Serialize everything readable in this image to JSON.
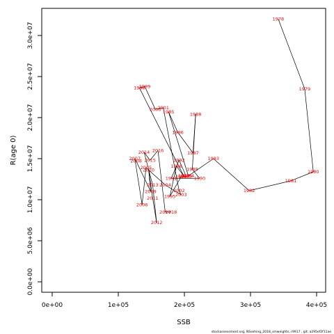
{
  "chart_data": {
    "type": "line",
    "xlabel": "SSB",
    "ylabel": "R(age 0)",
    "xlim": [
      0,
      400000
    ],
    "ylim": [
      0,
      32000000
    ],
    "x_ticks": [
      0,
      100000,
      200000,
      300000,
      400000
    ],
    "x_tick_labels": [
      "0e+00",
      "1e+05",
      "2e+05",
      "3e+05",
      "4e+05"
    ],
    "y_ticks": [
      0,
      5000000,
      10000000,
      15000000,
      20000000,
      25000000,
      30000000
    ],
    "y_tick_labels": [
      "0.0e+00",
      "5.0e+06",
      "1.0e+07",
      "1.5e+07",
      "2.0e+07",
      "2.5e+07",
      "3.0e+07"
    ],
    "grid": false,
    "series": [
      {
        "color": "#ff0000",
        "points": [
          {
            "year": "1978",
            "x": 342000,
            "y": 32000000
          },
          {
            "year": "1979",
            "x": 382000,
            "y": 23500000
          },
          {
            "year": "1980",
            "x": 395000,
            "y": 13400000
          },
          {
            "year": "1981",
            "x": 361000,
            "y": 12300000
          },
          {
            "year": "1982",
            "x": 298000,
            "y": 11100000
          },
          {
            "year": "1983",
            "x": 244000,
            "y": 15000000
          },
          {
            "year": "1984",
            "x": 206000,
            "y": 12900000
          },
          {
            "year": "1985",
            "x": 176000,
            "y": 20700000
          },
          {
            "year": "1986",
            "x": 190000,
            "y": 18200000
          },
          {
            "year": "1987",
            "x": 213000,
            "y": 15700000
          },
          {
            "year": "1988",
            "x": 217000,
            "y": 20400000
          },
          {
            "year": "1989",
            "x": 212000,
            "y": 13700000
          },
          {
            "year": "1990",
            "x": 223000,
            "y": 12600000
          },
          {
            "year": "1991",
            "x": 180000,
            "y": 12600000
          },
          {
            "year": "1992",
            "x": 192000,
            "y": 14800000
          },
          {
            "year": "1993",
            "x": 203000,
            "y": 12800000
          },
          {
            "year": "1994",
            "x": 195000,
            "y": 12800000
          },
          {
            "year": "1995",
            "x": 178000,
            "y": 10400000
          },
          {
            "year": "1996",
            "x": 188000,
            "y": 14100000
          },
          {
            "year": "1997",
            "x": 199000,
            "y": 12900000
          },
          {
            "year": "1998",
            "x": 132000,
            "y": 23600000
          },
          {
            "year": "1999",
            "x": 140000,
            "y": 23800000
          },
          {
            "year": "2000",
            "x": 156000,
            "y": 21000000
          },
          {
            "year": "2001",
            "x": 168000,
            "y": 21200000
          },
          {
            "year": "2002",
            "x": 192000,
            "y": 11100000
          },
          {
            "year": "2003",
            "x": 195000,
            "y": 10600000
          },
          {
            "year": "2004",
            "x": 171000,
            "y": 11800000
          },
          {
            "year": "2005",
            "x": 142000,
            "y": 13900000
          },
          {
            "year": "2006",
            "x": 136000,
            "y": 9400000
          },
          {
            "year": "2007",
            "x": 125000,
            "y": 15000000
          },
          {
            "year": "2008",
            "x": 127000,
            "y": 14700000
          },
          {
            "year": "2009",
            "x": 149000,
            "y": 11000000
          },
          {
            "year": "2010",
            "x": 146000,
            "y": 13600000
          },
          {
            "year": "2011",
            "x": 152000,
            "y": 10200000
          },
          {
            "year": "2012",
            "x": 158000,
            "y": 7200000
          },
          {
            "year": "2013",
            "x": 152000,
            "y": 11800000
          },
          {
            "year": "2014",
            "x": 139000,
            "y": 15800000
          },
          {
            "year": "2015",
            "x": 148000,
            "y": 14800000
          },
          {
            "year": "2016",
            "x": 160000,
            "y": 16000000
          },
          {
            "year": "2017",
            "x": 171000,
            "y": 8500000
          },
          {
            "year": "2018",
            "x": 180000,
            "y": 8500000
          }
        ]
      }
    ]
  },
  "footer": {
    "credit": "stockassessment.org, NSsehing_2018_smweights, r9917 , git: a295ef2f11ae"
  }
}
